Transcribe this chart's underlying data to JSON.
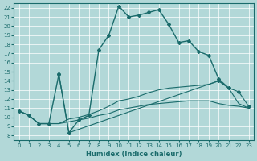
{
  "xlabel": "Humidex (Indice chaleur)",
  "bg_color": "#b2d8d8",
  "grid_color": "#ffffff",
  "line_color": "#1a6b6b",
  "xlim": [
    -0.5,
    23.5
  ],
  "ylim": [
    7.5,
    22.5
  ],
  "xticks": [
    0,
    1,
    2,
    3,
    4,
    5,
    6,
    7,
    8,
    9,
    10,
    11,
    12,
    13,
    14,
    15,
    16,
    17,
    18,
    19,
    20,
    21,
    22,
    23
  ],
  "yticks": [
    8,
    9,
    10,
    11,
    12,
    13,
    14,
    15,
    16,
    17,
    18,
    19,
    20,
    21,
    22
  ],
  "s1x": [
    0,
    1,
    2,
    3,
    4,
    5,
    6,
    7,
    8,
    9,
    10,
    11,
    12,
    13,
    14,
    15,
    16,
    17,
    18,
    19,
    20,
    21
  ],
  "s1y": [
    10.7,
    10.2,
    9.3,
    9.3,
    14.7,
    8.3,
    9.7,
    10.2,
    17.4,
    19.0,
    22.2,
    21.0,
    21.2,
    21.5,
    21.8,
    20.2,
    18.2,
    18.4,
    17.2,
    16.8,
    14.2,
    13.2
  ],
  "s2x": [
    0,
    1,
    2,
    3,
    4,
    5,
    6,
    7,
    8,
    9,
    10,
    11,
    12,
    13,
    14,
    15,
    16,
    17,
    18,
    19,
    20,
    21,
    22,
    23
  ],
  "s2y": [
    10.7,
    10.2,
    9.3,
    9.3,
    9.3,
    9.8,
    10.0,
    10.3,
    10.7,
    11.2,
    11.8,
    12.0,
    12.3,
    12.7,
    13.0,
    13.2,
    13.3,
    13.4,
    13.5,
    13.6,
    14.0,
    13.2,
    11.5,
    11.0
  ],
  "s3x": [
    0,
    1,
    2,
    3,
    4,
    5,
    6,
    7,
    8,
    9,
    10,
    11,
    12,
    13,
    14,
    15,
    16,
    17,
    18,
    19,
    20,
    21,
    22,
    23
  ],
  "s3y": [
    10.7,
    10.2,
    9.3,
    9.3,
    9.3,
    9.5,
    9.7,
    9.9,
    10.2,
    10.4,
    10.8,
    11.0,
    11.2,
    11.4,
    11.5,
    11.6,
    11.7,
    11.8,
    11.8,
    11.8,
    11.5,
    11.3,
    11.2,
    11.0
  ],
  "s4x": [
    4,
    5,
    20,
    21,
    22,
    23
  ],
  "s4y": [
    14.7,
    8.3,
    14.0,
    13.2,
    12.8,
    11.2
  ]
}
